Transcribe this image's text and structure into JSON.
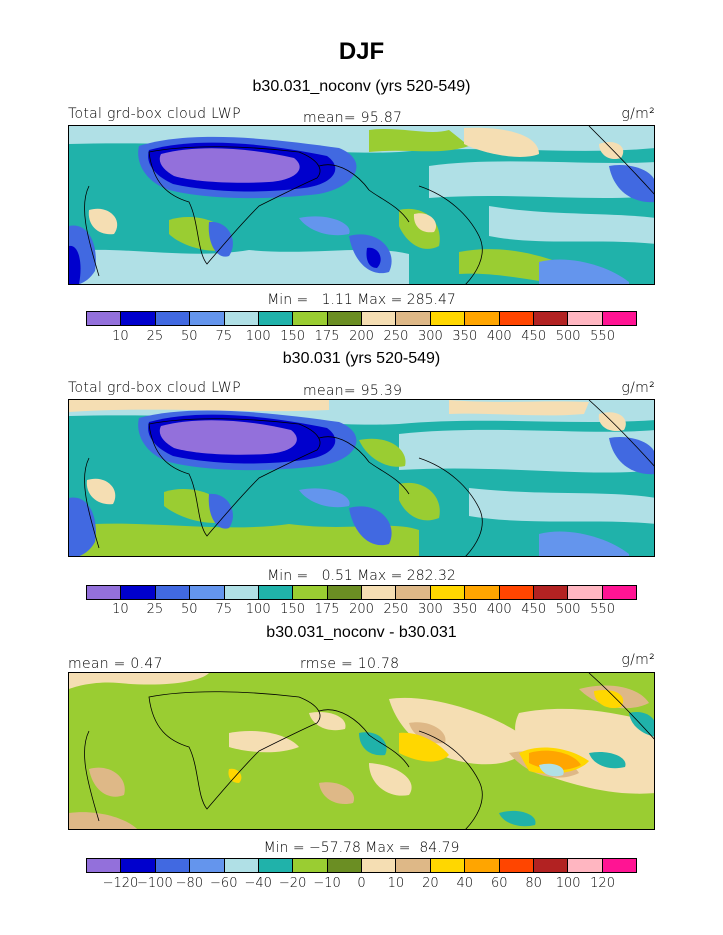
{
  "title": "DJF",
  "panels": [
    {
      "case": "b30.031_noconv (yrs 520-549)",
      "variable": "Total grd-box cloud LWP",
      "stat": "mean=  95.87",
      "units": "g/m²",
      "minmax": "Min =   1.11 Max = 285.47"
    },
    {
      "case": "b30.031 (yrs 520-549)",
      "variable": "Total grd-box cloud LWP",
      "stat": "mean=  95.39",
      "units": "g/m²",
      "minmax": "Min =   0.51 Max = 282.32"
    },
    {
      "case": "b30.031_noconv - b30.031",
      "variable": "mean =   0.47",
      "stat": "rmse =  10.78",
      "units": "g/m²",
      "minmax": "Min = −57.78 Max =  84.79"
    }
  ],
  "colorbar_colors": [
    "#9370db",
    "#0000cd",
    "#4169e1",
    "#6495ed",
    "#b0e0e6",
    "#20b2aa",
    "#9acd32",
    "#6b8e23",
    "#f5deb3",
    "#deb887",
    "#ffd700",
    "#ffa500",
    "#ff4500",
    "#b22222",
    "#ffb6c1",
    "#ff1493"
  ],
  "levels_lwp": [
    "10",
    "25",
    "50",
    "75",
    "100",
    "150",
    "175",
    "200",
    "250",
    "300",
    "350",
    "400",
    "450",
    "500",
    "550"
  ],
  "levels_diff": [
    "−120",
    "−100",
    "−80",
    "−60",
    "−40",
    "−20",
    "−10",
    "0",
    "10",
    "20",
    "40",
    "60",
    "80",
    "100",
    "120"
  ]
}
